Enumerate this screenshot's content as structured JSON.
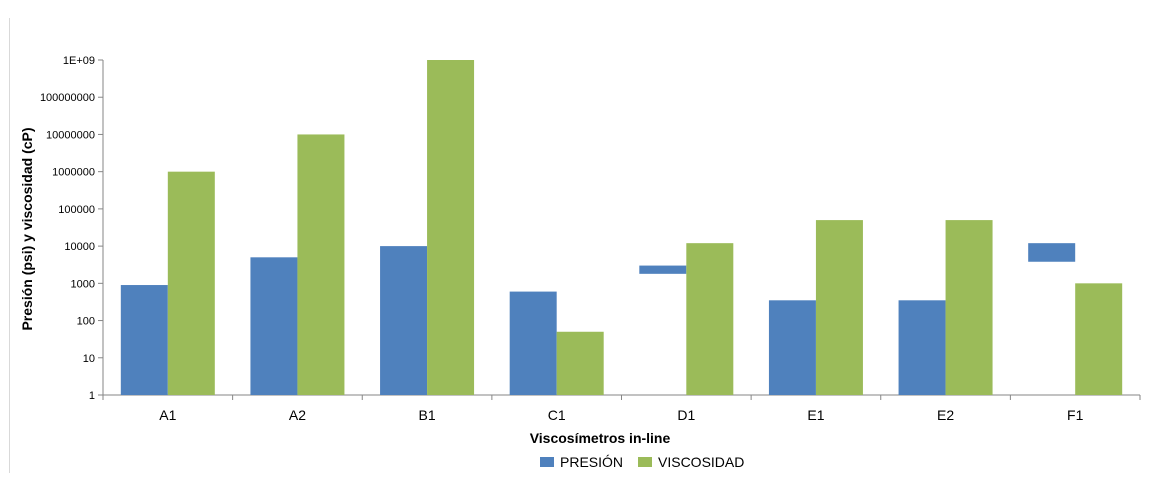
{
  "chart_data": {
    "type": "bar",
    "scale": "log",
    "xlabel": "Viscosímetros in-line",
    "ylabel": "Presión  (psi) y viscosidad (cP)",
    "ylim": [
      1,
      1000000000
    ],
    "yticks": [
      "1",
      "10",
      "100",
      "1000",
      "10000",
      "100000",
      "1000000",
      "10000000",
      "100000000",
      "1E+09"
    ],
    "categories": [
      "A1",
      "A2",
      "B1",
      "C1",
      "D1",
      "E1",
      "E2",
      "F1"
    ],
    "series": [
      {
        "name": "PRESIÓN",
        "color": "#4f81bd",
        "values": [
          900,
          5000,
          10000,
          600,
          null,
          350,
          350,
          null
        ],
        "floating": [
          null,
          null,
          null,
          null,
          [
            1800,
            3000
          ],
          null,
          null,
          [
            3800,
            12000
          ]
        ]
      },
      {
        "name": "VISCOSIDAD",
        "color": "#9bbb59",
        "values": [
          1000000,
          10000000,
          1000000000,
          50,
          12000,
          50000,
          50000,
          1000
        ],
        "floating": [
          null,
          null,
          null,
          null,
          null,
          null,
          null,
          null
        ]
      }
    ],
    "legend": "bottom",
    "grid": false
  }
}
